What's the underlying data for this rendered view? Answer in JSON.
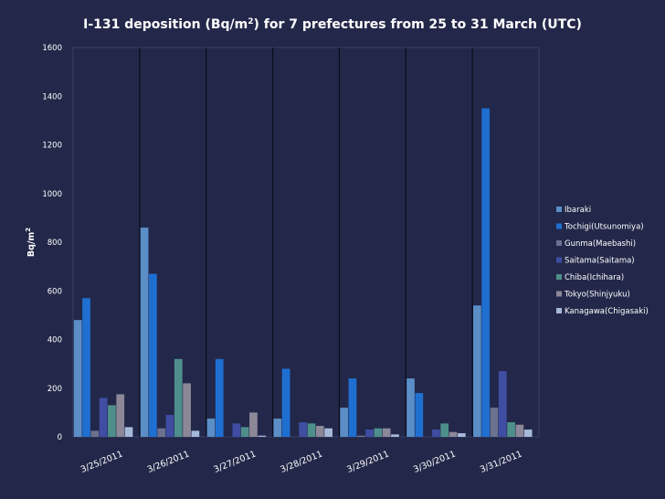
{
  "chart_data": {
    "type": "bar",
    "title": "I-131 deposition (Bq/m²) for 7 prefectures from 25 to 31 March (UTC)",
    "title_parts": {
      "before": "I-131 deposition (Bq/m",
      "sup": "2",
      "after": ") for 7 prefectures from 25 to 31 March (UTC)"
    },
    "xlabel": "",
    "ylabel": "Bq/m²",
    "ylabel_parts": {
      "base": "Bq/m",
      "sup": "2"
    },
    "ylim": [
      0,
      1600
    ],
    "yticks": [
      0,
      200,
      400,
      600,
      800,
      1000,
      1200,
      1400,
      1600
    ],
    "grid": false,
    "legend_position": "right",
    "categories": [
      "3/25/2011",
      "3/26/2011",
      "3/27/2011",
      "3/28/2011",
      "3/29/2011",
      "3/30/2011",
      "3/31/2011"
    ],
    "series": [
      {
        "name": " Ibaraki",
        "color": "#5b8ec6",
        "values": [
          480,
          860,
          75,
          75,
          120,
          240,
          540
        ]
      },
      {
        "name": "Tochigi(Utsunomiya)",
        "color": "#1f6fd1",
        "values": [
          570,
          670,
          320,
          280,
          240,
          180,
          1350
        ]
      },
      {
        "name": "Gunma(Maebashi)",
        "color": "#6a7290",
        "values": [
          25,
          35,
          0,
          0,
          5,
          0,
          120
        ]
      },
      {
        "name": "Saitama(Saitama)",
        "color": "#3f4da3",
        "values": [
          160,
          90,
          55,
          60,
          30,
          30,
          270
        ]
      },
      {
        "name": "Chiba(Ichihara)",
        "color": "#4e8f8b",
        "values": [
          130,
          320,
          40,
          55,
          35,
          55,
          60
        ]
      },
      {
        "name": "Tokyo(Shinjyuku)",
        "color": "#8c8898",
        "values": [
          175,
          220,
          100,
          45,
          35,
          20,
          50
        ]
      },
      {
        "name": "Kanagawa(Chigasaki)",
        "color": "#a7b9da",
        "values": [
          40,
          25,
          5,
          35,
          10,
          15,
          30
        ]
      }
    ]
  }
}
